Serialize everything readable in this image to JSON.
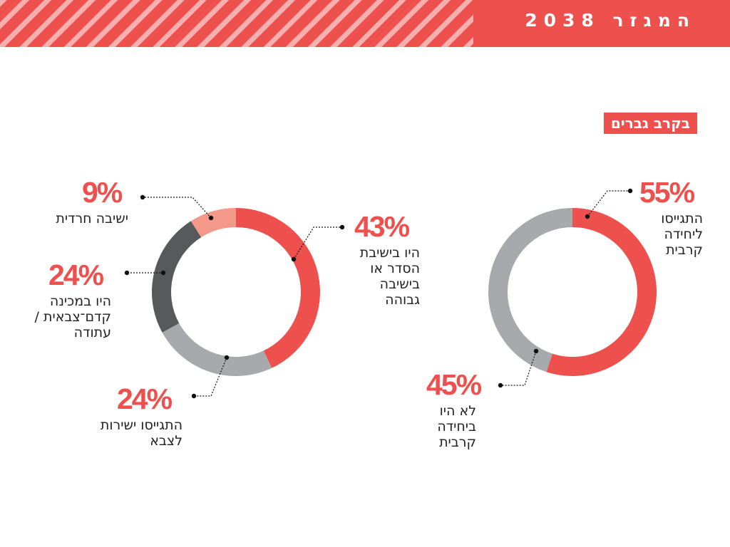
{
  "header": {
    "title": "המגזר 2038"
  },
  "badge": {
    "text": "בקרב גברים"
  },
  "colors": {
    "red": "#ee504d",
    "light_red": "#f4998a",
    "gray": "#a7a9ac",
    "dark_gray": "#58595b"
  },
  "chart_data": [
    {
      "type": "pie",
      "variant": "donut",
      "categories": [
        "התגייסו ליחידה קרבית",
        "לא היו ביחידה קרבית"
      ],
      "values": [
        55,
        45
      ],
      "value_labels": [
        "55%",
        "45%"
      ],
      "colors": [
        "#ee504d",
        "#a7a9ac"
      ]
    },
    {
      "type": "pie",
      "variant": "donut",
      "categories": [
        "היו בישיבת הסדר או בישיבה גבוהה",
        "התגייסו ישירות לצבא",
        "היו במכינה קדם־צבאית / עתודה",
        "ישיבה חרדית"
      ],
      "values": [
        43,
        24,
        24,
        9
      ],
      "value_labels": [
        "43%",
        "24%",
        "24%",
        "9%"
      ],
      "colors": [
        "#ee504d",
        "#a7a9ac",
        "#58595b",
        "#f4998a"
      ]
    }
  ],
  "labels": {
    "right_55": "התגייסו\nליחידה\nקרבית",
    "right_45": "לא היו\nביחידה\nקרבית",
    "left_43": "היו בישיבת\nהסדר או\nבישיבה\nגבוהה",
    "left_9": "ישיבה חרדית",
    "left_24_prep": "היו במכינה\nקדם־צבאית /\nעתודה",
    "left_24_direct": "התגייסו ישירות\nלצבא"
  }
}
